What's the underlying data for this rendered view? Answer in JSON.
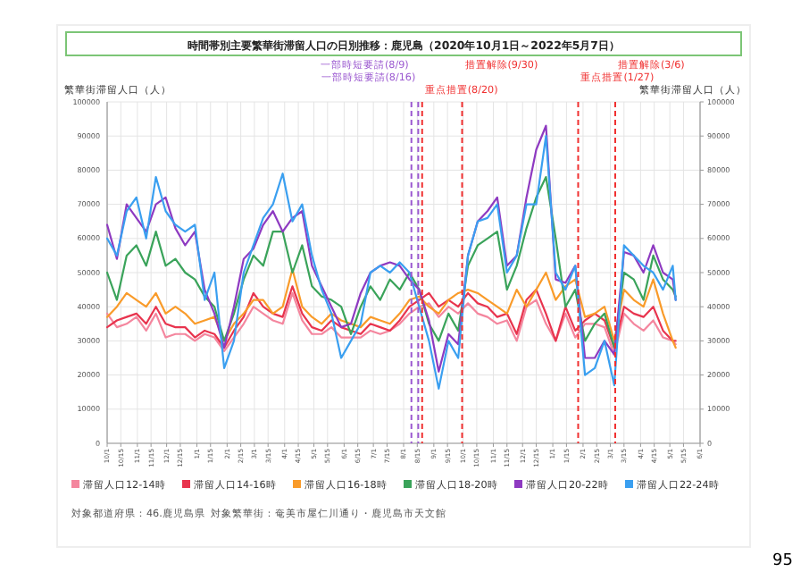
{
  "chart_data": {
    "type": "line",
    "title": "時間帯別主要繁華街滞留人口の日別推移：鹿児島（2020年10月1日～2022年5月7日）",
    "ylabel": "繁華街滞留人口（人）",
    "y2label": "繁華街滞留人口（人）",
    "x": [
      "2020-10-01",
      "2020-10-11",
      "2020-10-21",
      "2020-10-31",
      "2020-11-10",
      "2020-11-20",
      "2020-11-30",
      "2020-12-10",
      "2020-12-20",
      "2020-12-30",
      "2021-01-09",
      "2021-01-19",
      "2021-01-29",
      "2021-02-08",
      "2021-02-18",
      "2021-02-28",
      "2021-03-10",
      "2021-03-20",
      "2021-03-30",
      "2021-04-09",
      "2021-04-19",
      "2021-04-29",
      "2021-05-09",
      "2021-05-19",
      "2021-05-29",
      "2021-06-08",
      "2021-06-18",
      "2021-06-28",
      "2021-07-08",
      "2021-07-18",
      "2021-07-28",
      "2021-08-07",
      "2021-08-17",
      "2021-08-27",
      "2021-09-06",
      "2021-09-16",
      "2021-09-26",
      "2021-10-06",
      "2021-10-16",
      "2021-10-26",
      "2021-11-05",
      "2021-11-15",
      "2021-11-25",
      "2021-12-05",
      "2021-12-15",
      "2021-12-25",
      "2022-01-04",
      "2022-01-14",
      "2022-01-24",
      "2022-02-03",
      "2022-02-13",
      "2022-02-23",
      "2022-03-05",
      "2022-03-15",
      "2022-03-25",
      "2022-04-04",
      "2022-04-14",
      "2022-04-24",
      "2022-05-04",
      "2022-05-07"
    ],
    "series": [
      {
        "name": "滞留人口12-14時",
        "color": "#f4869e",
        "values": [
          38000,
          34000,
          35000,
          37000,
          33000,
          38000,
          31000,
          32000,
          32000,
          30000,
          32000,
          31000,
          27000,
          31000,
          35000,
          40000,
          38000,
          36000,
          35000,
          44000,
          36000,
          32000,
          32000,
          34000,
          31000,
          31000,
          31000,
          33000,
          32000,
          33000,
          35000,
          38000,
          40000,
          41000,
          37000,
          40000,
          38000,
          41000,
          38000,
          37000,
          35000,
          36000,
          30000,
          40000,
          42000,
          35000,
          30000,
          38000,
          31000,
          35000,
          35000,
          34000,
          26000,
          38000,
          35000,
          33000,
          36000,
          31000,
          30000,
          29000
        ]
      },
      {
        "name": "滞留人口14-16時",
        "color": "#e8344e",
        "values": [
          34000,
          36000,
          37000,
          38000,
          35000,
          40000,
          35000,
          34000,
          34000,
          31000,
          33000,
          32000,
          28000,
          33000,
          37000,
          44000,
          40000,
          38000,
          37000,
          46000,
          38000,
          34000,
          33000,
          36000,
          34000,
          33000,
          32000,
          35000,
          34000,
          33000,
          36000,
          40000,
          42000,
          44000,
          40000,
          42000,
          40000,
          44000,
          41000,
          40000,
          37000,
          38000,
          32000,
          42000,
          45000,
          38000,
          30000,
          40000,
          33000,
          36000,
          38000,
          36000,
          28000,
          40000,
          38000,
          37000,
          40000,
          33000,
          30000,
          30000
        ]
      },
      {
        "name": "滞留人口16-18時",
        "color": "#f99b2a",
        "values": [
          37000,
          40000,
          44000,
          42000,
          40000,
          44000,
          38000,
          40000,
          38000,
          35000,
          36000,
          37000,
          30000,
          35000,
          38000,
          42000,
          42000,
          38000,
          40000,
          51000,
          40000,
          37000,
          35000,
          38000,
          36000,
          35000,
          34000,
          37000,
          36000,
          35000,
          38000,
          42000,
          43000,
          40000,
          38000,
          42000,
          44000,
          45000,
          44000,
          42000,
          40000,
          38000,
          45000,
          40000,
          45000,
          50000,
          42000,
          46000,
          48000,
          37000,
          38000,
          40000,
          30000,
          45000,
          42000,
          40000,
          48000,
          38000,
          30000,
          28000
        ]
      },
      {
        "name": "滞留人口18-20時",
        "color": "#3aa35a",
        "values": [
          50000,
          42000,
          55000,
          58000,
          52000,
          62000,
          52000,
          54000,
          50000,
          48000,
          43000,
          40000,
          30000,
          38000,
          48000,
          55000,
          52000,
          62000,
          62000,
          50000,
          58000,
          46000,
          43000,
          42000,
          40000,
          32000,
          40000,
          46000,
          42000,
          48000,
          45000,
          50000,
          45000,
          35000,
          30000,
          38000,
          33000,
          52000,
          58000,
          60000,
          62000,
          45000,
          52000,
          63000,
          72000,
          78000,
          60000,
          40000,
          45000,
          30000,
          35000,
          38000,
          28000,
          50000,
          48000,
          42000,
          55000,
          48000,
          45000,
          43000
        ]
      },
      {
        "name": "滞留人口20-22時",
        "color": "#8e3ac1",
        "values": [
          64000,
          54000,
          70000,
          66000,
          62000,
          70000,
          72000,
          63000,
          58000,
          62000,
          45000,
          38000,
          28000,
          40000,
          54000,
          57000,
          64000,
          68000,
          62000,
          66000,
          68000,
          52000,
          46000,
          40000,
          34000,
          35000,
          44000,
          50000,
          52000,
          53000,
          52000,
          48000,
          45000,
          36000,
          21000,
          32000,
          29000,
          55000,
          65000,
          68000,
          72000,
          52000,
          55000,
          72000,
          86000,
          93000,
          48000,
          47000,
          52000,
          25000,
          25000,
          30000,
          26000,
          56000,
          55000,
          50000,
          58000,
          50000,
          48000,
          42000
        ]
      },
      {
        "name": "滞留人口22-24時",
        "color": "#3a9ff0",
        "values": [
          60000,
          55000,
          68000,
          72000,
          60000,
          78000,
          68000,
          64000,
          62000,
          64000,
          42000,
          50000,
          22000,
          30000,
          50000,
          58000,
          66000,
          70000,
          79000,
          65000,
          70000,
          55000,
          45000,
          38000,
          25000,
          30000,
          35000,
          50000,
          52000,
          50000,
          53000,
          50000,
          40000,
          30000,
          16000,
          30000,
          25000,
          55000,
          65000,
          66000,
          70000,
          50000,
          55000,
          70000,
          70000,
          90000,
          50000,
          45000,
          52000,
          20000,
          22000,
          30000,
          17000,
          58000,
          55000,
          52000,
          50000,
          45000,
          52000,
          42000
        ]
      }
    ],
    "xlim": [
      "2020-10-01",
      "2022-06-01"
    ],
    "xticks": [
      {
        "value": "2020-10-01",
        "label": "10/1"
      },
      {
        "value": "2020-10-15",
        "label": "10/15"
      },
      {
        "value": "2020-11-01",
        "label": "11/1"
      },
      {
        "value": "2020-11-15",
        "label": "11/15"
      },
      {
        "value": "2020-12-01",
        "label": "12/1"
      },
      {
        "value": "2020-12-15",
        "label": "12/15"
      },
      {
        "value": "2021-01-01",
        "label": "1/1"
      },
      {
        "value": "2021-01-15",
        "label": "1/15"
      },
      {
        "value": "2021-02-01",
        "label": "2/1"
      },
      {
        "value": "2021-02-15",
        "label": "2/15"
      },
      {
        "value": "2021-03-01",
        "label": "3/1"
      },
      {
        "value": "2021-03-15",
        "label": "3/15"
      },
      {
        "value": "2021-04-01",
        "label": "4/1"
      },
      {
        "value": "2021-04-15",
        "label": "4/15"
      },
      {
        "value": "2021-05-01",
        "label": "5/1"
      },
      {
        "value": "2021-05-15",
        "label": "5/15"
      },
      {
        "value": "2021-06-01",
        "label": "6/1"
      },
      {
        "value": "2021-06-15",
        "label": "6/15"
      },
      {
        "value": "2021-07-01",
        "label": "7/1"
      },
      {
        "value": "2021-07-15",
        "label": "7/15"
      },
      {
        "value": "2021-08-01",
        "label": "8/1"
      },
      {
        "value": "2021-08-15",
        "label": "8/15"
      },
      {
        "value": "2021-09-01",
        "label": "9/1"
      },
      {
        "value": "2021-09-15",
        "label": "9/15"
      },
      {
        "value": "2021-10-01",
        "label": "10/1"
      },
      {
        "value": "2021-10-15",
        "label": "10/15"
      },
      {
        "value": "2021-11-01",
        "label": "11/1"
      },
      {
        "value": "2021-11-15",
        "label": "11/15"
      },
      {
        "value": "2021-12-01",
        "label": "12/1"
      },
      {
        "value": "2021-12-15",
        "label": "12/15"
      },
      {
        "value": "2022-01-01",
        "label": "1/1"
      },
      {
        "value": "2022-01-15",
        "label": "1/15"
      },
      {
        "value": "2022-02-01",
        "label": "2/1"
      },
      {
        "value": "2022-02-15",
        "label": "2/15"
      },
      {
        "value": "2022-03-01",
        "label": "3/1"
      },
      {
        "value": "2022-03-15",
        "label": "3/15"
      },
      {
        "value": "2022-04-01",
        "label": "4/1"
      },
      {
        "value": "2022-04-15",
        "label": "4/15"
      },
      {
        "value": "2022-05-01",
        "label": "5/1"
      },
      {
        "value": "2022-05-15",
        "label": "5/15"
      },
      {
        "value": "2022-06-01",
        "label": "6/1"
      }
    ],
    "ylim": [
      0,
      100000
    ],
    "yticks": [
      0,
      10000,
      20000,
      30000,
      40000,
      50000,
      60000,
      70000,
      80000,
      90000,
      100000
    ],
    "y2lim": [
      0,
      100000
    ],
    "y2ticks": [
      0,
      10000,
      20000,
      30000,
      40000,
      50000,
      60000,
      70000,
      80000,
      90000,
      100000
    ],
    "ref_lines": [
      {
        "axis": "x",
        "value": "2021-08-09",
        "label": "一部時短要請(8/9)",
        "color": "#9b59d0",
        "line_style": "dashed"
      },
      {
        "axis": "x",
        "value": "2021-08-16",
        "label": "一部時短要請(8/16)",
        "color": "#9b59d0",
        "line_style": "dashed"
      },
      {
        "axis": "x",
        "value": "2021-08-20",
        "label": "重点措置(8/20)",
        "color": "#f03030",
        "line_style": "dashed"
      },
      {
        "axis": "x",
        "value": "2021-09-30",
        "label": "措置解除(9/30)",
        "color": "#f03030",
        "line_style": "dashed"
      },
      {
        "axis": "x",
        "value": "2022-01-27",
        "label": "重点措置(1/27)",
        "color": "#f03030",
        "line_style": "dashed"
      },
      {
        "axis": "x",
        "value": "2022-03-06",
        "label": "措置解除(3/6)",
        "color": "#f03030",
        "line_style": "dashed"
      }
    ],
    "grid": true,
    "legend": "bottom",
    "line_style": "solid",
    "marker": "none",
    "annotations": [
      "対象都道府県：46.鹿児島県",
      "対象繁華街：奄美市屋仁川通り・鹿児島市天文館",
      "95"
    ]
  }
}
